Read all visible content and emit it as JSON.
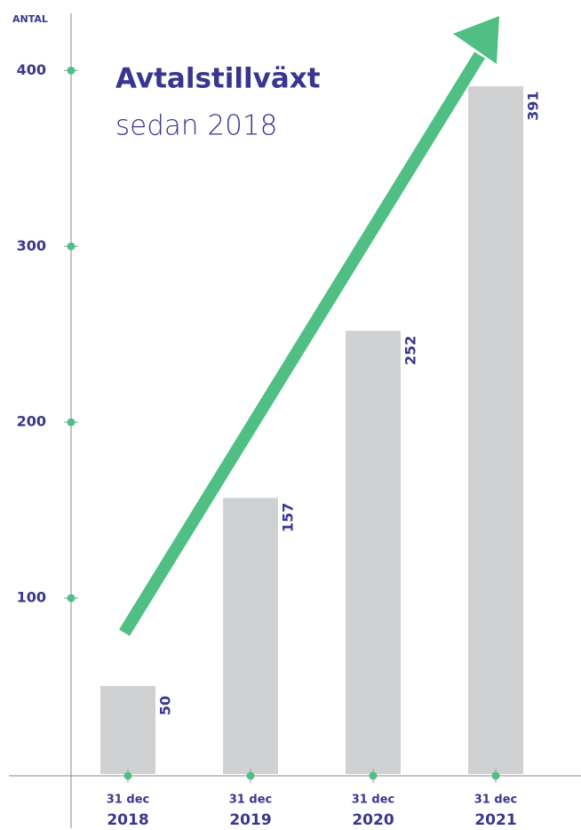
{
  "chart_data": {
    "type": "bar",
    "title": "Avtalstillväxt",
    "subtitle": "sedan 2018",
    "y_label": "ANTAL",
    "categories": [
      [
        "31 dec",
        "2018"
      ],
      [
        "31 dec",
        "2019"
      ],
      [
        "31 dec",
        "2020"
      ],
      [
        "31 dec",
        "2021"
      ]
    ],
    "values": [
      50,
      157,
      252,
      391
    ],
    "color": "#d0d1d3",
    "ylim": [
      0,
      432
    ],
    "yticks": [
      100,
      200,
      300,
      400
    ],
    "tick_color": "#4fbf84"
  }
}
